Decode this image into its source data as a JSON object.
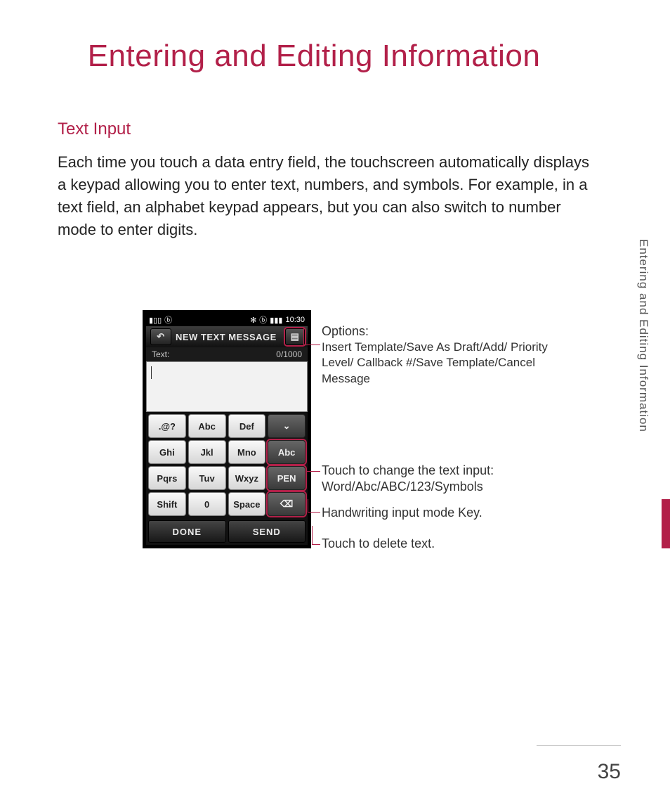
{
  "title": "Entering and Editing Information",
  "section_heading": "Text Input",
  "intro": "Each time you touch a data entry field, the touchscreen automatically displays a keypad allowing you to enter text, numbers, and symbols. For example, in a text field, an alphabet keypad appears, but you can also switch to number mode to enter digits.",
  "side_label": "Entering and Editing Information",
  "page_number": "35",
  "phone": {
    "status_time": "10:30",
    "header_title": "NEW TEXT MESSAGE",
    "text_label": "Text:",
    "char_counter": "0/1000",
    "keys": [
      {
        "label": ".@?",
        "dark": false,
        "hl": false
      },
      {
        "label": "Abc",
        "dark": false,
        "hl": false
      },
      {
        "label": "Def",
        "dark": false,
        "hl": false
      },
      {
        "label": "⌄",
        "dark": true,
        "hl": false
      },
      {
        "label": "Ghi",
        "dark": false,
        "hl": false
      },
      {
        "label": "Jkl",
        "dark": false,
        "hl": false
      },
      {
        "label": "Mno",
        "dark": false,
        "hl": false
      },
      {
        "label": "Abc",
        "dark": true,
        "hl": true
      },
      {
        "label": "Pqrs",
        "dark": false,
        "hl": false
      },
      {
        "label": "Tuv",
        "dark": false,
        "hl": false
      },
      {
        "label": "Wxyz",
        "dark": false,
        "hl": false
      },
      {
        "label": "PEN",
        "dark": true,
        "hl": true
      },
      {
        "label": "Shift",
        "dark": false,
        "hl": false
      },
      {
        "label": "0",
        "dark": false,
        "hl": false
      },
      {
        "label": "Space",
        "dark": false,
        "hl": false
      },
      {
        "label": "⌫",
        "dark": true,
        "hl": true
      }
    ],
    "done_label": "DONE",
    "send_label": "SEND"
  },
  "callouts": {
    "options_title": "Options:",
    "options_body": "Insert Template/Save As Draft/Add/ Priority Level/ Callback #/Save Template/Cancel Message",
    "mode_line1": "Touch to change the text input:",
    "mode_line2": "Word/Abc/ABC/123/Symbols",
    "pen": "Handwriting input mode Key.",
    "delete": "Touch to delete text."
  },
  "colors": {
    "accent": "#b22049"
  }
}
